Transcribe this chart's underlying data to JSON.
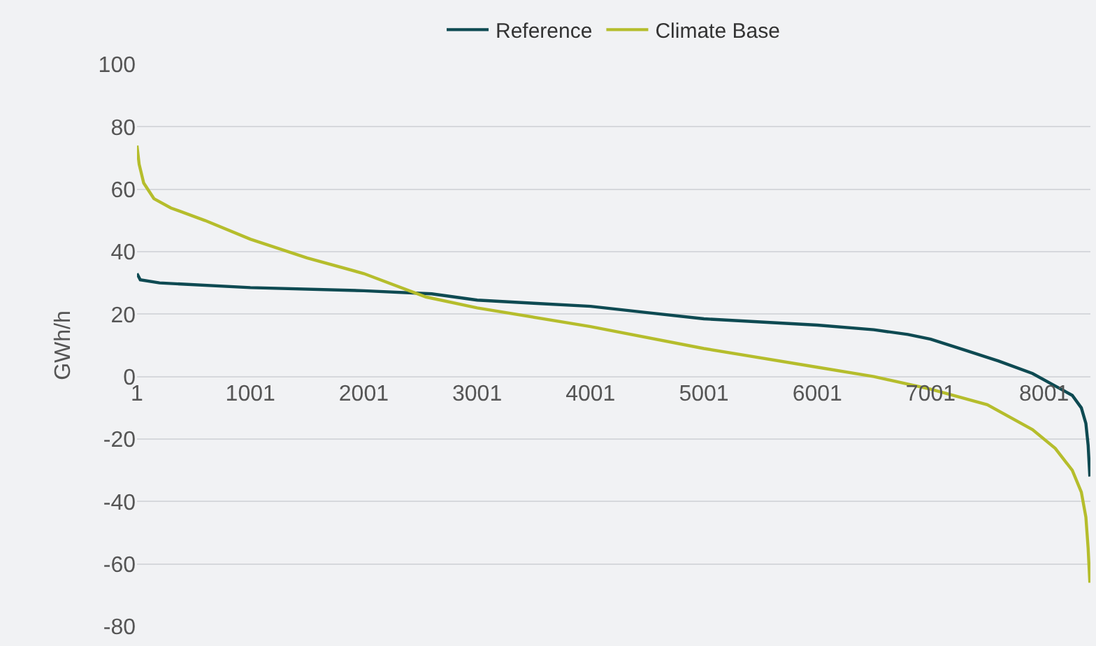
{
  "chart_data": {
    "type": "line",
    "ylabel": "GWh/h",
    "xlim": [
      1,
      8410
    ],
    "xticks": [
      1,
      1001,
      2001,
      3001,
      4001,
      5001,
      6001,
      7001,
      8001
    ],
    "ylim": [
      -80,
      100
    ],
    "yticks": [
      -80,
      -60,
      -40,
      -20,
      0,
      20,
      40,
      60,
      80,
      100
    ],
    "grid": "y",
    "legend": "top",
    "marker": "none",
    "line_style": "solid",
    "series": [
      {
        "name": "Reference",
        "color": "#0e4a52",
        "x": [
          1,
          30,
          200,
          1001,
          2001,
          2600,
          3001,
          3500,
          4001,
          4500,
          5001,
          5500,
          6001,
          6500,
          6800,
          7001,
          7300,
          7600,
          7900,
          8100,
          8250,
          8330,
          8370,
          8390,
          8405
        ],
        "values": [
          33,
          31,
          30,
          28.5,
          27.5,
          26.5,
          24.5,
          23.5,
          22.5,
          20.5,
          18.5,
          17.5,
          16.5,
          15,
          13.5,
          12,
          8.5,
          5,
          1,
          -3,
          -6,
          -10,
          -15,
          -22,
          -32
        ]
      },
      {
        "name": "Climate Base",
        "color": "#b5bd2c",
        "x": [
          1,
          20,
          60,
          150,
          300,
          600,
          1001,
          1500,
          2001,
          2550,
          3001,
          4001,
          5001,
          6001,
          6500,
          7001,
          7500,
          7900,
          8100,
          8250,
          8330,
          8370,
          8390,
          8405
        ],
        "values": [
          74,
          68,
          62,
          57,
          54,
          50,
          44,
          38,
          33,
          25.5,
          22,
          16,
          9,
          3,
          0,
          -4,
          -9,
          -17,
          -23,
          -30,
          -37,
          -45,
          -55,
          -66
        ]
      }
    ]
  }
}
